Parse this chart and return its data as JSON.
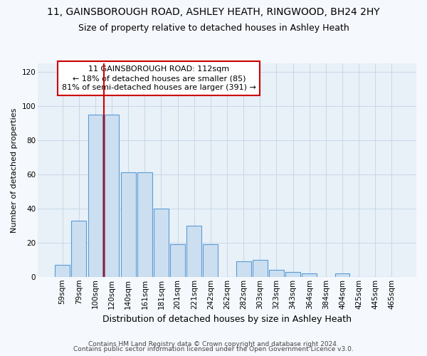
{
  "title": "11, GAINSBOROUGH ROAD, ASHLEY HEATH, RINGWOOD, BH24 2HY",
  "subtitle": "Size of property relative to detached houses in Ashley Heath",
  "xlabel": "Distribution of detached houses by size in Ashley Heath",
  "ylabel": "Number of detached properties",
  "bar_labels": [
    "59sqm",
    "79sqm",
    "100sqm",
    "120sqm",
    "140sqm",
    "161sqm",
    "181sqm",
    "201sqm",
    "221sqm",
    "242sqm",
    "262sqm",
    "282sqm",
    "303sqm",
    "323sqm",
    "343sqm",
    "364sqm",
    "384sqm",
    "404sqm",
    "425sqm",
    "445sqm",
    "465sqm"
  ],
  "bar_values": [
    7,
    33,
    95,
    95,
    61,
    61,
    40,
    19,
    30,
    19,
    0,
    9,
    10,
    4,
    3,
    2,
    0,
    2,
    0,
    0,
    0
  ],
  "bar_color": "#ccdff0",
  "bar_edge_color": "#5b9bd5",
  "vline_x_idx": 3,
  "vline_color": "#cc0000",
  "annotation_text": "11 GAINSBOROUGH ROAD: 112sqm\n← 18% of detached houses are smaller (85)\n81% of semi-detached houses are larger (391) →",
  "annotation_box_facecolor": "#ffffff",
  "annotation_box_edgecolor": "#cc0000",
  "ylim": [
    0,
    125
  ],
  "yticks": [
    0,
    20,
    40,
    60,
    80,
    100,
    120
  ],
  "grid_color": "#c8d8e8",
  "plot_bg_color": "#e8f0f8",
  "fig_bg_color": "#f5f8fc",
  "footer1": "Contains HM Land Registry data © Crown copyright and database right 2024.",
  "footer2": "Contains public sector information licensed under the Open Government Licence v3.0.",
  "title_fontsize": 10,
  "subtitle_fontsize": 9,
  "ylabel_fontsize": 8,
  "xlabel_fontsize": 9,
  "tick_fontsize": 7.5,
  "annotation_fontsize": 8,
  "footer_fontsize": 6.5
}
